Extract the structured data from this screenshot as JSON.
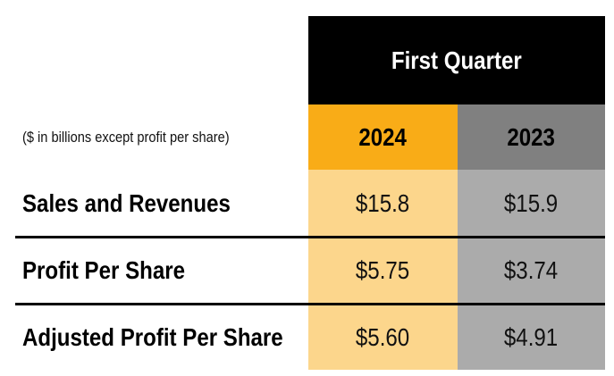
{
  "chart_data": {
    "type": "table",
    "title": "First Quarter",
    "note": "($ in billions except profit per share)",
    "columns": [
      "2024",
      "2023"
    ],
    "rows": [
      {
        "label": "Sales and Revenues",
        "values": [
          "$15.8",
          "$15.9"
        ]
      },
      {
        "label": "Profit Per Share",
        "values": [
          "$5.75",
          "$3.74"
        ]
      },
      {
        "label": "Adjusted Profit Per Share",
        "values": [
          "$5.60",
          "$4.91"
        ]
      }
    ],
    "colors": {
      "header_bg": "#000000",
      "col_2024_header": "#F9AC17",
      "col_2023_header": "#808080",
      "col_2024_body": "#FCD68C",
      "col_2023_body": "#ABABAB"
    }
  }
}
